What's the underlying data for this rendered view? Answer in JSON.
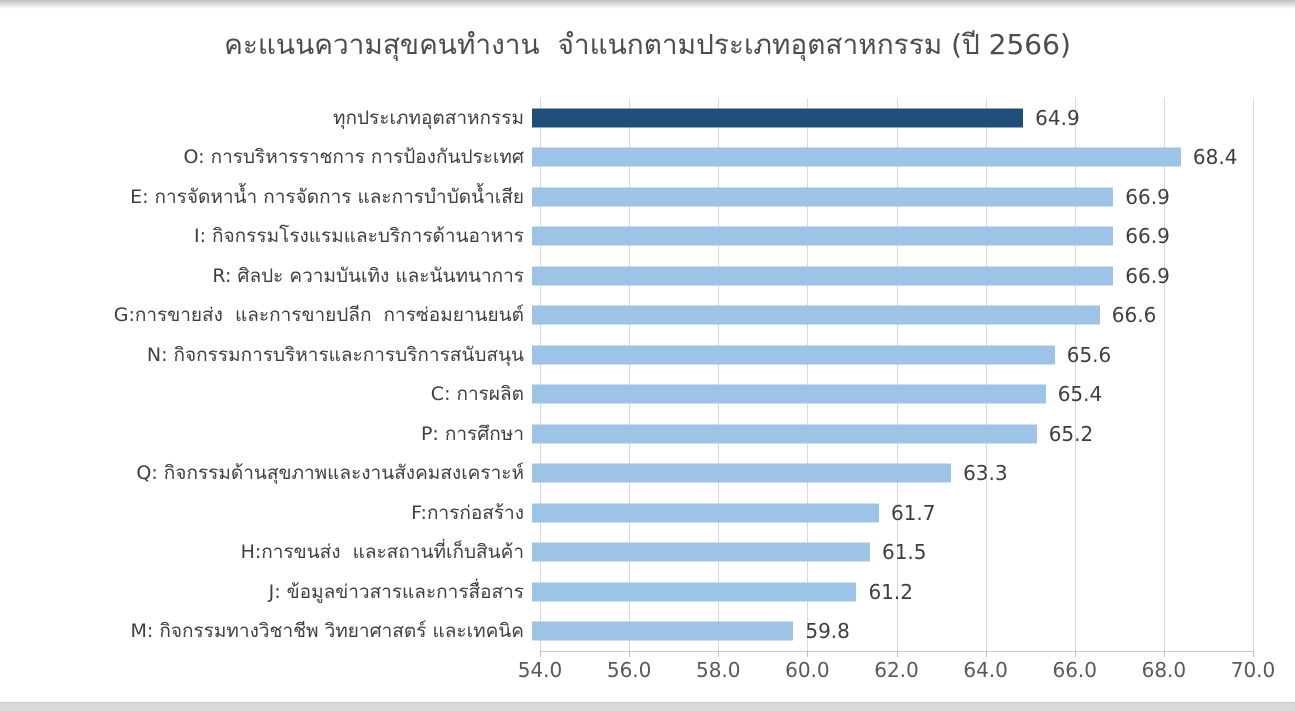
{
  "page": {
    "top_strip_color": "#bdbdbd",
    "bottom_strip_color": "#d9d9d9",
    "background": "#ffffff"
  },
  "chart_data": {
    "type": "bar",
    "orientation": "horizontal",
    "title": "คะแนนความสุขคนทำงาน  จำแนกตามประเภทอุตสาหกรรม (ปี 2566)",
    "categories": [
      "ทุกประเภทอุตสาหกรรม",
      "O: การบริหารราชการ การป้องกันประเทศ",
      "E: การจัดหาน้ำ การจัดการ และการบำบัดน้ำเสีย",
      "I: กิจกรรมโรงแรมและบริการด้านอาหาร",
      "R: ศิลปะ ความบันเทิง และนันทนาการ",
      "G:การขายส่ง  และการขายปลีก  การซ่อมยานยนต์",
      "N: กิจกรรมการบริหารและการบริการสนับสนุน",
      "C: การผลิต",
      "P: การศึกษา",
      "Q: กิจกรรมด้านสุขภาพและงานสังคมสงเคราะห์",
      "F:การก่อสร้าง",
      "H:การขนส่ง  และสถานที่เก็บสินค้า",
      "J: ข้อมูลข่าวสารและการสื่อสาร",
      "M: กิจกรรมทางวิชาชีพ วิทยาศาสตร์ และเทคนิค"
    ],
    "values": [
      64.9,
      68.4,
      66.9,
      66.9,
      66.9,
      66.6,
      65.6,
      65.4,
      65.2,
      63.3,
      61.7,
      61.5,
      61.2,
      59.8
    ],
    "value_labels": [
      "64.9",
      "68.4",
      "66.9",
      "66.9",
      "66.9",
      "66.6",
      "65.6",
      "65.4",
      "65.2",
      "63.3",
      "61.7",
      "61.5",
      "61.2",
      "59.8"
    ],
    "highlight_index": 0,
    "colors": {
      "highlight_bar": "#1f4e79",
      "default_bar": "#9dc3e6",
      "gridline": "#d9d9d9",
      "axis": "#bfbfbf",
      "category_text": "#3f3f3f",
      "value_text": "#3f3f3f",
      "tick_text": "#595959",
      "title_text": "#4d4d4d"
    },
    "xlabel": "",
    "ylabel": "",
    "xlim": [
      54.0,
      70.0
    ],
    "x_ticks": [
      "54.0",
      "56.0",
      "58.0",
      "60.0",
      "62.0",
      "64.0",
      "66.0",
      "68.0",
      "70.0"
    ],
    "grid": "vertical gridlines every 2.0",
    "legend": "none",
    "data_labels": "shown at end of each bar, one decimal"
  }
}
